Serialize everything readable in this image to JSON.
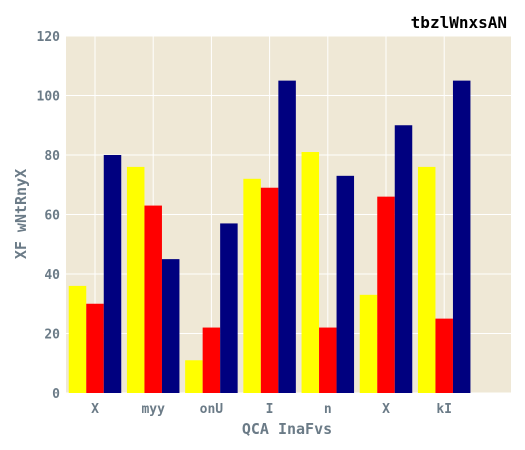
{
  "chart_data": {
    "type": "bar",
    "title": "tbzlWnxsAN",
    "xlabel": "QCA InaFvs",
    "ylabel": "XF wNtRnyX",
    "categories": [
      "X",
      "myy",
      "onU",
      "I",
      "n",
      "X",
      "kI"
    ],
    "ylim": [
      0,
      120
    ],
    "yticks": [
      0,
      20,
      40,
      60,
      80,
      100,
      120
    ],
    "grid": true,
    "series": [
      {
        "color": "#ffff00",
        "values": [
          36,
          76,
          11,
          72,
          81,
          33,
          76
        ]
      },
      {
        "color": "#ff0000",
        "values": [
          30,
          63,
          22,
          69,
          22,
          66,
          25
        ]
      },
      {
        "color": "#00007f",
        "values": [
          80,
          45,
          57,
          105,
          73,
          90,
          105
        ]
      }
    ]
  },
  "colors": {
    "plot_background": "#efe8d6",
    "grid": "#ffffff",
    "text": "#6b7b87"
  }
}
